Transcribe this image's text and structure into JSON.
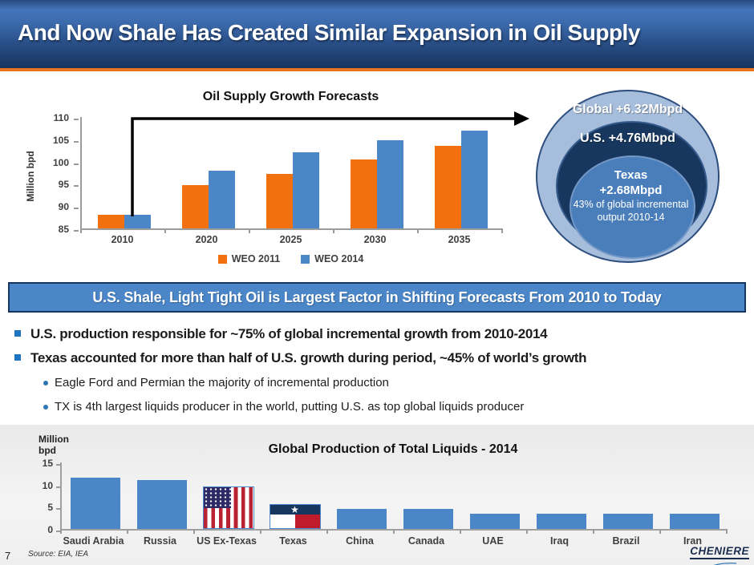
{
  "slide": {
    "title": "And Now Shale Has Created Similar Expansion in Oil Supply",
    "page_number": "7",
    "source": "Source: EIA, IEA",
    "logo_text": "CHENIERE"
  },
  "banner": {
    "text": "U.S. Shale, Light Tight Oil is Largest Factor in Shifting Forecasts From 2010 to Today"
  },
  "bullets": [
    {
      "level": 1,
      "text": "U.S. production responsible for ~75% of global incremental growth from 2010-2014"
    },
    {
      "level": 1,
      "text": "Texas accounted for more than half of U.S. growth during period, ~45% of world’s growth"
    },
    {
      "level": 2,
      "text": "Eagle Ford and Permian the majority of incremental production"
    },
    {
      "level": 2,
      "text": "TX is 4th largest liquids producer in the world, putting U.S. as top global liquids producer"
    }
  ],
  "circles": {
    "outer_label": "Global +6.32Mbpd",
    "middle_label": "U.S. +4.76Mbpd",
    "inner_title": "Texas",
    "inner_value": "+2.68Mbpd",
    "inner_note": "43% of global incremental output 2010-14"
  },
  "colors": {
    "orange_accent": "#e97420",
    "series_orange": "#f2700e",
    "series_blue": "#4a86c8",
    "banner_blue": "#4a86c8",
    "navy": "#17375e",
    "circle_light_blue": "#a6bedc",
    "circle_inner_blue": "#4a7ebb"
  },
  "chart_data": [
    {
      "type": "bar",
      "title": "Oil Supply Growth Forecasts",
      "ylabel": "Million bpd",
      "categories": [
        "2010",
        "2020",
        "2025",
        "2030",
        "2035"
      ],
      "series": [
        {
          "name": "WEO 2011",
          "color": "#f2700e",
          "values": [
            88,
            94.7,
            97.2,
            100.4,
            103.6
          ]
        },
        {
          "name": "WEO 2014",
          "color": "#4a86c8",
          "values": [
            88,
            98,
            102,
            104.8,
            107
          ]
        }
      ],
      "ylim": [
        85,
        110
      ],
      "yticks": [
        85,
        90,
        95,
        100,
        105,
        110
      ],
      "grid": false,
      "legend_position": "bottom",
      "annotation": "arrow from 2010 bars pointing right toward circles graphic"
    },
    {
      "type": "bar",
      "title": "Global Production of Total Liquids - 2014",
      "ylabel": "Million bpd",
      "categories": [
        "Saudi Arabia",
        "Russia",
        "US Ex-Texas",
        "Texas",
        "China",
        "Canada",
        "UAE",
        "Iraq",
        "Brazil",
        "Iran"
      ],
      "values": [
        11.6,
        11.0,
        9.3,
        5.2,
        4.6,
        4.5,
        3.5,
        3.5,
        3.4,
        3.4
      ],
      "bar_styles": [
        "solid",
        "solid",
        "us-flag",
        "texas-flag",
        "solid",
        "solid",
        "solid",
        "solid",
        "solid",
        "solid"
      ],
      "bar_color": "#4a86c8",
      "ylim": [
        0,
        15
      ],
      "yticks": [
        0,
        5,
        10,
        15
      ],
      "grid": false
    }
  ]
}
